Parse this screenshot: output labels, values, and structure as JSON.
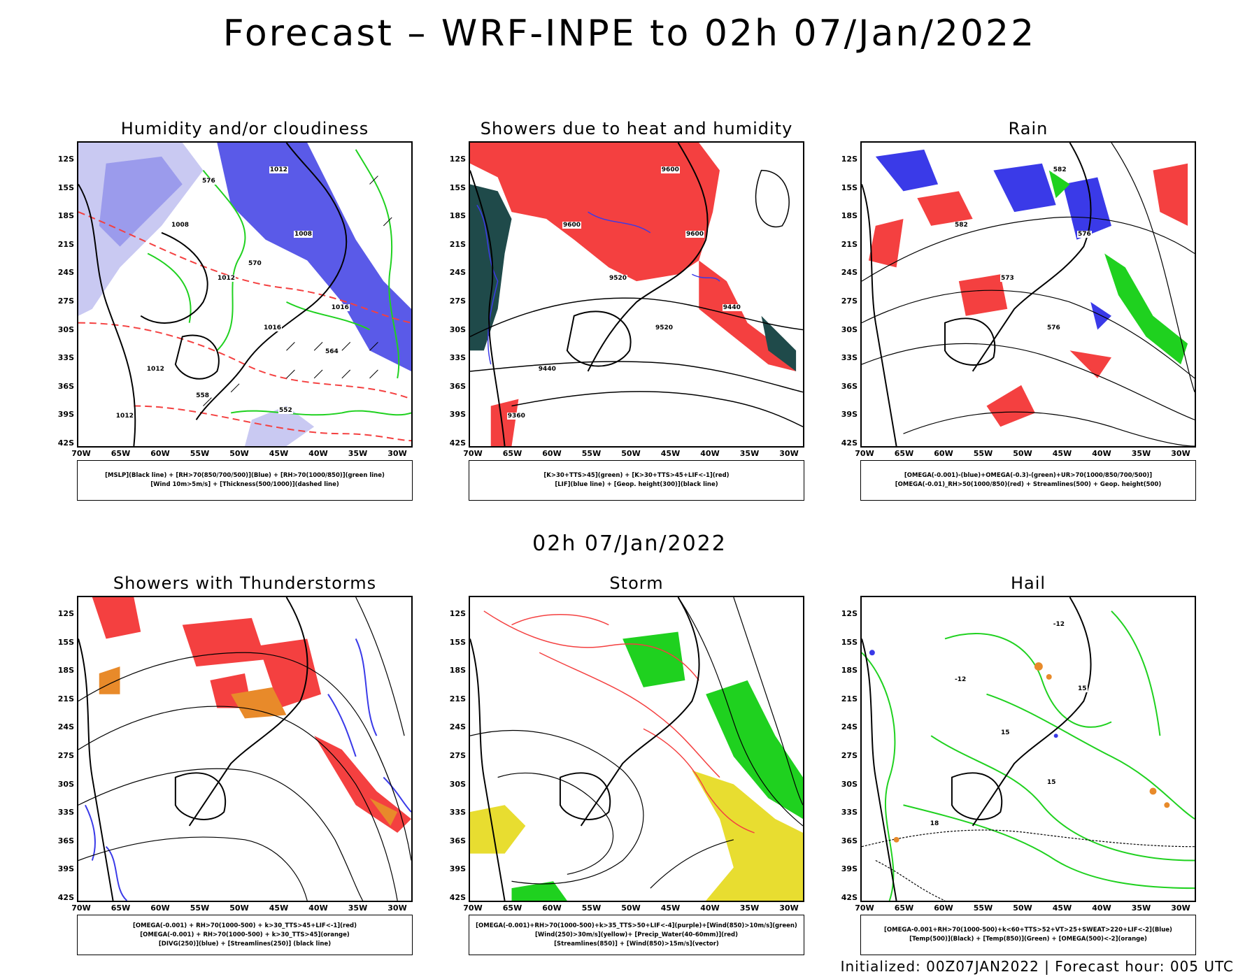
{
  "header": {
    "title": "Forecast – WRF-INPE to 02h 07/Jan/2022"
  },
  "mid_title": "02h 07/Jan/2022",
  "axes": {
    "lat_labels": [
      "12S",
      "15S",
      "18S",
      "21S",
      "24S",
      "27S",
      "30S",
      "33S",
      "36S",
      "39S",
      "42S"
    ],
    "lon_labels": [
      "70W",
      "65W",
      "60W",
      "55W",
      "50W",
      "45W",
      "40W",
      "35W",
      "30W"
    ]
  },
  "panels": [
    {
      "title": "Humidity and/or cloudiness",
      "legend": [
        "[MSLP](Black line) + [RH>70(850/700/500)](Blue) + [RH>70(1000/850)](green line)",
        "[Wind 10m>5m/s] + [Thickness(500/1000)](dashed line)"
      ],
      "contour_labels": [
        "1012",
        "1008",
        "1008",
        "1012",
        "1016",
        "1012",
        "1016",
        "1012",
        "576",
        "570",
        "564",
        "558",
        "552"
      ]
    },
    {
      "title": "Showers due to heat and humidity",
      "legend": [
        "[K>30+TTS>45](green) + [K>30+TTS>45+LIF<-1](red)",
        "[LIF](blue line) + [Geop. height(300)](black line)"
      ],
      "contour_labels": [
        "9600",
        "9600",
        "9600",
        "9520",
        "9520",
        "9440",
        "9440",
        "9360"
      ]
    },
    {
      "title": "Rain",
      "legend": [
        "[OMEGA(-0.001)-(blue)+OMEGA(-0.3)-(green)+UR>70(1000/850/700/500)]",
        "[OMEGA(-0.01)_RH>50(1000/850)(red) + Streamlines(500) + Geop. height(500)"
      ],
      "contour_labels": [
        "582",
        "582",
        "576",
        "573",
        "576"
      ]
    },
    {
      "title": "Showers with Thunderstorms",
      "legend": [
        "[OMEGA(-0.001) + RH>70(1000-500) + k>30_TTS>45+LIF<-1](red)",
        "[OMEGA(-0.001) + RH>70(1000-500) + k>30_TTS>45](orange)",
        "[DIVG(250)](blue) + [Streamlines(250)] (black line)"
      ],
      "contour_labels": []
    },
    {
      "title": "Storm",
      "legend": [
        "[OMEGA(-0.001)+RH>70(1000-500)+k>35_TTS>50+LIF<-4](purple)+[Wind(850)>10m/s](green)",
        "[Wind(250)>30m/s](yellow)+ [Precip_Water(40-60mm)](red)",
        "[Streamlines(850)] + [Wind(850)>15m/s](vector)"
      ],
      "contour_labels": []
    },
    {
      "title": "Hail",
      "legend": [
        "[OMEGA-0.001+RH>70(1000-500)+k<60+TTS>52+VT>25+SWEAT>220+LIF<-2](Blue)",
        "[Temp(500)](Black) + [Temp(850)](Green) + [OMEGA(500)<-2](orange)"
      ],
      "contour_labels": [
        "-12",
        "-12",
        "15",
        "15",
        "15",
        "18"
      ]
    }
  ],
  "footer": "Initialized: 00Z07JAN2022 | Forecast hour: 005 UTC",
  "colors": {
    "red": "#f44040",
    "blue": "#3a3ae8",
    "green": "#1fd11f",
    "dark_green": "#1f4a4a",
    "yellow": "#e8dd30",
    "orange": "#e88a2a",
    "lavender": "#9b9bec",
    "light_lavender": "#c9c9f2"
  }
}
